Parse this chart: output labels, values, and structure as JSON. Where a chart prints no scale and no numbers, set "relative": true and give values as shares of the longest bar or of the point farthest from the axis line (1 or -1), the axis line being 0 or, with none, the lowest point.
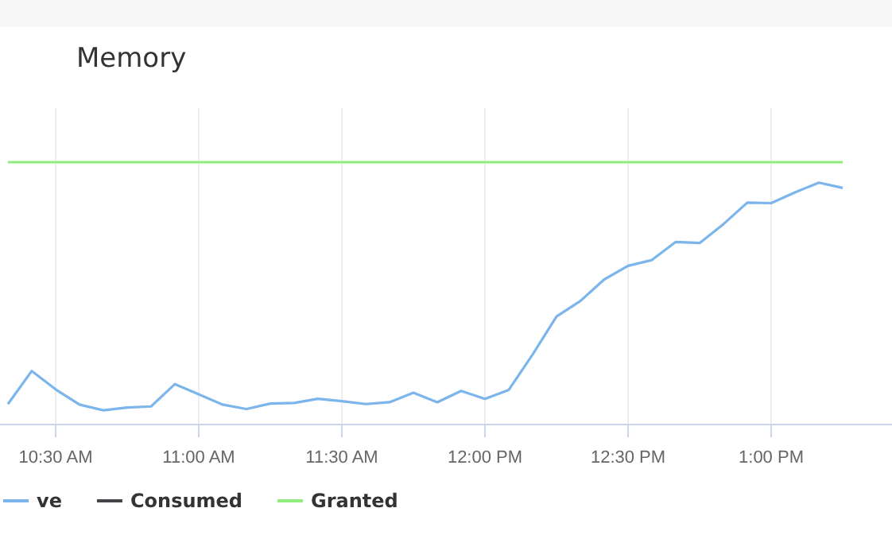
{
  "chart_data": {
    "type": "line",
    "title": "Memory",
    "relative": true,
    "grid": "x",
    "legend": "bottom left",
    "marker": "none",
    "line_style": "solid",
    "x": [
      10.3333,
      10.4167,
      10.5,
      10.5833,
      10.6667,
      10.75,
      10.8333,
      10.9167,
      11,
      11.0833,
      11.1667,
      11.25,
      11.3333,
      11.4167,
      11.5,
      11.5833,
      11.6667,
      11.75,
      11.8333,
      11.9167,
      12,
      12.0833,
      12.1667,
      12.25,
      12.3333,
      12.4167,
      12.5,
      12.5833,
      12.6667,
      12.75,
      12.8333,
      12.9167,
      13,
      13.0833,
      13.1667,
      13.25
    ],
    "xlim": [
      10.3056,
      13.4222
    ],
    "xticks": [
      {
        "value": 10.5,
        "label": "10:30 AM"
      },
      {
        "value": 11,
        "label": "11:00 AM"
      },
      {
        "value": 11.5,
        "label": "11:30 AM"
      },
      {
        "value": 12,
        "label": "12:00 PM"
      },
      {
        "value": 12.5,
        "label": "12:30 PM"
      },
      {
        "value": 13,
        "label": "1:00 PM"
      }
    ],
    "series": [
      {
        "name": "ve",
        "color": "#7cb5ec",
        "values": [
          0.078,
          0.204,
          0.134,
          0.076,
          0.054,
          0.065,
          0.069,
          0.154,
          0.115,
          0.076,
          0.059,
          0.08,
          0.082,
          0.098,
          0.089,
          0.078,
          0.085,
          0.121,
          0.085,
          0.128,
          0.098,
          0.132,
          0.267,
          0.412,
          0.471,
          0.553,
          0.605,
          0.627,
          0.696,
          0.692,
          0.764,
          0.846,
          0.844,
          0.885,
          0.922,
          0.902
        ]
      },
      {
        "name": "Consumed",
        "color": "#434348",
        "values": [
          null,
          null,
          null,
          null,
          null,
          null,
          null,
          null,
          null,
          null,
          null,
          null,
          null,
          null,
          null,
          null,
          null,
          null,
          null,
          null,
          null,
          null,
          null,
          null,
          null,
          null,
          null,
          null,
          null,
          null,
          null,
          null,
          null,
          null,
          null,
          null
        ]
      },
      {
        "name": "Granted",
        "color": "#90ed7d",
        "values": [
          1,
          1,
          1,
          1,
          1,
          1,
          1,
          1,
          1,
          1,
          1,
          1,
          1,
          1,
          1,
          1,
          1,
          1,
          1,
          1,
          1,
          1,
          1,
          1,
          1,
          1,
          1,
          1,
          1,
          1,
          1,
          1,
          1,
          1,
          1,
          1
        ]
      }
    ]
  }
}
